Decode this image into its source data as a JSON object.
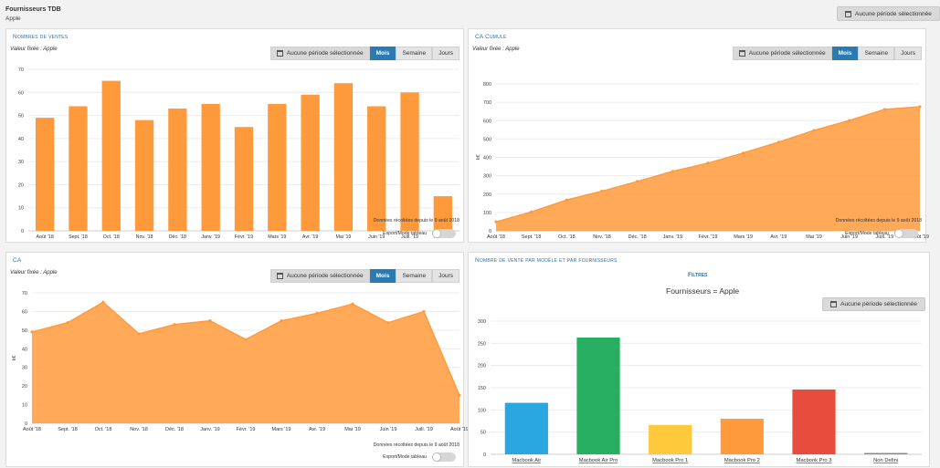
{
  "header": {
    "title": "Fournisseurs TDB",
    "subtitle": "Apple",
    "period_button": "Aucune période sélectionnée"
  },
  "common": {
    "fixed_value": "Valeur fixée : Apple",
    "period_label": "Aucune période sélectionnée",
    "mois": "Mois",
    "semaine": "Semaine",
    "jours": "Jours",
    "note": "Données récoltées depuis le 9 août 2018",
    "export": "Export/Mode tableau"
  },
  "panels": {
    "ventes": {
      "title": "Nombres de ventes"
    },
    "cumule": {
      "title": "CA Cumulé"
    },
    "ca": {
      "title": "CA"
    },
    "modele": {
      "title": "Nombre de vente par modèle et par fournisseurs",
      "filters_title": "Filtres",
      "filters_line": "Fournisseurs = Apple"
    }
  },
  "colors": {
    "orange": "#ff9a3c",
    "blue": "#2a7ab3",
    "models": [
      "#2aa6e0",
      "#27ae60",
      "#ffc93c",
      "#ff9a3c",
      "#e74c3c",
      "#888888"
    ]
  },
  "chart_data": [
    {
      "type": "bar",
      "categories": [
        "Août '18",
        "Sept. '18",
        "Oct. '18",
        "Nov. '18",
        "Déc. '18",
        "Janv. '19",
        "Févr. '19",
        "Mars '19",
        "Avr. '19",
        "Mai '19",
        "Juin '19",
        "Juill. '19",
        "Août '19"
      ],
      "values": [
        49,
        54,
        65,
        48,
        53,
        55,
        45,
        55,
        59,
        64,
        54,
        60,
        15
      ],
      "title": "Nombres de ventes",
      "xlabel": "",
      "ylabel": "",
      "ylim": [
        0,
        70
      ],
      "yticks": [
        0,
        10,
        20,
        30,
        40,
        50,
        60,
        70
      ]
    },
    {
      "type": "area",
      "categories": [
        "Août '18",
        "Sept. '18",
        "Oct. '18",
        "Nov. '18",
        "Déc. '18",
        "Janv. '19",
        "Févr. '19",
        "Mars '19",
        "Avr. '19",
        "Mai '19",
        "Juin '19",
        "Juill. '19",
        "Août '19"
      ],
      "values": [
        49,
        103,
        168,
        216,
        269,
        324,
        369,
        424,
        483,
        547,
        601,
        661,
        676
      ],
      "title": "CA Cumulé",
      "xlabel": "",
      "ylabel": "k€",
      "ylim": [
        0,
        800
      ],
      "yticks": [
        0,
        100,
        200,
        300,
        400,
        500,
        600,
        700,
        800
      ]
    },
    {
      "type": "area",
      "categories": [
        "Août '18",
        "Sept. '18",
        "Oct. '18",
        "Nov. '18",
        "Déc. '18",
        "Janv. '19",
        "Févr. '19",
        "Mars '19",
        "Avr. '19",
        "Mai '19",
        "Juin '19",
        "Juill. '19",
        "Août '19"
      ],
      "values": [
        49,
        54,
        65,
        48,
        53,
        55,
        45,
        55,
        59,
        64,
        54,
        60,
        15
      ],
      "title": "CA",
      "xlabel": "",
      "ylabel": "k€",
      "ylim": [
        0,
        70
      ],
      "yticks": [
        0,
        10,
        20,
        30,
        40,
        50,
        60,
        70
      ]
    },
    {
      "type": "bar",
      "categories": [
        "Macbook Air",
        "Macbook Air Pro",
        "Macbook Pro 1",
        "Macbook Pro 2",
        "Macbook Pro 3",
        "Non Defini"
      ],
      "values": [
        116,
        263,
        66,
        80,
        146,
        3
      ],
      "title": "Nombre de vente par modèle et par fournisseurs",
      "xlabel": "",
      "ylabel": "",
      "ylim": [
        0,
        300
      ],
      "yticks": [
        0,
        50,
        100,
        150,
        200,
        250,
        300
      ]
    }
  ]
}
